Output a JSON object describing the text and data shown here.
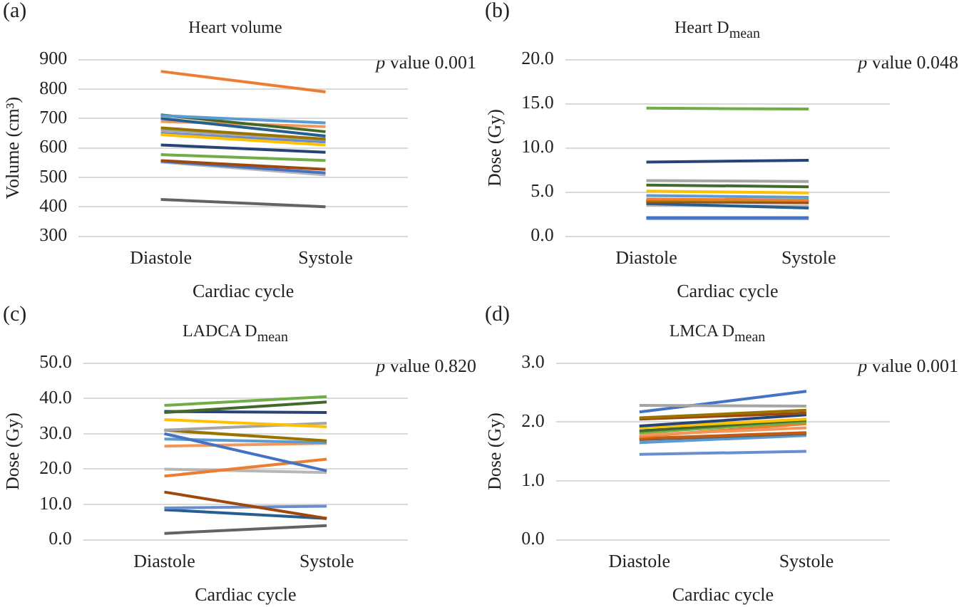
{
  "chart_data": [
    {
      "type": "line",
      "title": "Heart volume",
      "xlabel": "Cardiac cycle",
      "ylabel": "Volume (cm³)",
      "annotations": [
        "(a)",
        "p value 0.001"
      ],
      "categories": [
        "Diastole",
        "Systole"
      ],
      "ylim": [
        300,
        900
      ],
      "yticks": [
        300,
        400,
        500,
        600,
        700,
        800,
        900
      ],
      "grid": "y",
      "legend": false,
      "marker": "none",
      "series": [
        {
          "color": "#ed7d31",
          "values": [
            860,
            790
          ]
        },
        {
          "color": "#5b9bd5",
          "values": [
            710,
            685
          ]
        },
        {
          "color": "#43682b",
          "values": [
            712,
            655
          ]
        },
        {
          "color": "#255e91",
          "values": [
            700,
            640
          ]
        },
        {
          "color": "#f1975a",
          "values": [
            690,
            672
          ]
        },
        {
          "color": "#997300",
          "values": [
            668,
            630
          ]
        },
        {
          "color": "#a5a5a5",
          "values": [
            660,
            628
          ]
        },
        {
          "color": "#ffc000",
          "values": [
            645,
            610
          ]
        },
        {
          "color": "#698ed0",
          "values": [
            650,
            620
          ]
        },
        {
          "color": "#264478",
          "values": [
            610,
            585
          ]
        },
        {
          "color": "#70ad47",
          "values": [
            577,
            557
          ]
        },
        {
          "color": "#9e480e",
          "values": [
            557,
            527
          ]
        },
        {
          "color": "#4472c4",
          "values": [
            555,
            515
          ]
        },
        {
          "color": "#b7b7b7",
          "values": [
            552,
            508
          ]
        },
        {
          "color": "#636363",
          "values": [
            425,
            400
          ]
        }
      ]
    },
    {
      "type": "line",
      "title": "Heart D$_{mean}$",
      "xlabel": "Cardiac cycle",
      "ylabel": "Dose (Gy)",
      "annotations": [
        "(b)",
        "p value 0.048"
      ],
      "categories": [
        "Diastole",
        "Systole"
      ],
      "ylim": [
        0,
        20
      ],
      "yticks": [
        {
          "value": 0,
          "label": "0.0"
        },
        {
          "value": 5,
          "label": "5.0"
        },
        {
          "value": 10,
          "label": "10.0"
        },
        {
          "value": 15,
          "label": "15.0"
        },
        {
          "value": 20,
          "label": "20.0"
        }
      ],
      "grid": "y",
      "legend": false,
      "marker": "none",
      "series": [
        {
          "color": "#70ad47",
          "values": [
            14.5,
            14.4
          ]
        },
        {
          "color": "#264478",
          "values": [
            8.4,
            8.6
          ]
        },
        {
          "color": "#a5a5a5",
          "values": [
            6.3,
            6.2
          ]
        },
        {
          "color": "#43682b",
          "values": [
            5.8,
            5.6
          ]
        },
        {
          "color": "#ffc000",
          "values": [
            5.1,
            4.9
          ]
        },
        {
          "color": "#5b9bd5",
          "values": [
            4.6,
            4.4
          ]
        },
        {
          "color": "#ed7d31",
          "values": [
            4.2,
            4.1
          ]
        },
        {
          "color": "#997300",
          "values": [
            4.0,
            4.0
          ]
        },
        {
          "color": "#9e480e",
          "values": [
            3.9,
            3.8
          ]
        },
        {
          "color": "#255e91",
          "values": [
            3.7,
            3.2
          ]
        },
        {
          "color": "#b7b7b7",
          "values": [
            3.5,
            3.4
          ]
        },
        {
          "color": "#4472c4",
          "values": [
            2.1,
            2.1
          ]
        },
        {
          "color": "#698ed0",
          "values": [
            2.0,
            2.0
          ]
        }
      ]
    },
    {
      "type": "line",
      "title": "LADCA D$_{mean}$",
      "xlabel": "Cardiac cycle",
      "ylabel": "Dose (Gy)",
      "annotations": [
        "(c)",
        "p value 0.820"
      ],
      "categories": [
        "Diastole",
        "Systole"
      ],
      "ylim": [
        0,
        50
      ],
      "yticks": [
        {
          "value": 0,
          "label": "0.0"
        },
        {
          "value": 10,
          "label": "10.0"
        },
        {
          "value": 20,
          "label": "20.0"
        },
        {
          "value": 30,
          "label": "30.0"
        },
        {
          "value": 40,
          "label": "40.0"
        },
        {
          "value": 50,
          "label": "50.0"
        }
      ],
      "grid": "y",
      "legend": false,
      "marker": "none",
      "series": [
        {
          "color": "#70ad47",
          "values": [
            38,
            40.5
          ]
        },
        {
          "color": "#43682b",
          "values": [
            36,
            39
          ]
        },
        {
          "color": "#264478",
          "values": [
            36.3,
            36
          ]
        },
        {
          "color": "#ffc000",
          "values": [
            34,
            32
          ]
        },
        {
          "color": "#a5a5a5",
          "values": [
            31,
            33
          ]
        },
        {
          "color": "#997300",
          "values": [
            31,
            28
          ]
        },
        {
          "color": "#4472c4",
          "values": [
            30,
            19.5
          ]
        },
        {
          "color": "#5b9bd5",
          "values": [
            28.5,
            27.5
          ]
        },
        {
          "color": "#f1975a",
          "values": [
            26.5,
            27.3
          ]
        },
        {
          "color": "#ed7d31",
          "values": [
            18,
            22.8
          ]
        },
        {
          "color": "#b7b7b7",
          "values": [
            20,
            19
          ]
        },
        {
          "color": "#9e480e",
          "values": [
            13.5,
            6
          ]
        },
        {
          "color": "#698ed0",
          "values": [
            9,
            9.5
          ]
        },
        {
          "color": "#255e91",
          "values": [
            8.5,
            6
          ]
        },
        {
          "color": "#636363",
          "values": [
            1.8,
            4
          ]
        }
      ]
    },
    {
      "type": "line",
      "title": "LMCA D$_{mean}$",
      "xlabel": "Cardiac cycle",
      "ylabel": "Dose (Gy)",
      "annotations": [
        "(d)",
        "p value 0.001"
      ],
      "categories": [
        "Diastole",
        "Systole"
      ],
      "ylim": [
        0,
        3
      ],
      "yticks": [
        {
          "value": 0,
          "label": "0.0"
        },
        {
          "value": 1,
          "label": "1.0"
        },
        {
          "value": 2,
          "label": "2.0"
        },
        {
          "value": 3,
          "label": "3.0"
        }
      ],
      "grid": "y",
      "legend": false,
      "marker": "none",
      "series": [
        {
          "color": "#a5a5a5",
          "values": [
            2.28,
            2.27
          ]
        },
        {
          "color": "#4472c4",
          "values": [
            2.17,
            2.52
          ]
        },
        {
          "color": "#997300",
          "values": [
            2.07,
            2.2
          ]
        },
        {
          "color": "#9e480e",
          "values": [
            2.05,
            2.15
          ]
        },
        {
          "color": "#264478",
          "values": [
            1.93,
            2.12
          ]
        },
        {
          "color": "#ffc000",
          "values": [
            1.9,
            2.05
          ]
        },
        {
          "color": "#43682b",
          "values": [
            1.85,
            2.03
          ]
        },
        {
          "color": "#70ad47",
          "values": [
            1.82,
            2.0
          ]
        },
        {
          "color": "#f1975a",
          "values": [
            1.78,
            1.9
          ]
        },
        {
          "color": "#ed7d31",
          "values": [
            1.75,
            1.97
          ]
        },
        {
          "color": "#c55a11",
          "values": [
            1.72,
            1.82
          ]
        },
        {
          "color": "#636363",
          "values": [
            1.7,
            1.8
          ]
        },
        {
          "color": "#5b9bd5",
          "values": [
            1.65,
            1.77
          ]
        },
        {
          "color": "#698ed0",
          "values": [
            1.45,
            1.5
          ]
        }
      ]
    }
  ]
}
